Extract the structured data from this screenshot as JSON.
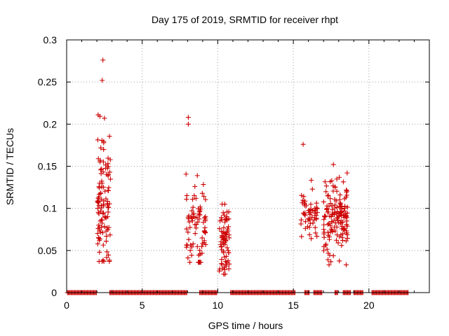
{
  "chart_data": {
    "type": "scatter",
    "title": "Day 175 of 2019, SRMTID for receiver rhpt",
    "xlabel": "GPS time / hours",
    "ylabel": "SRMTID / TECUs",
    "xlim": [
      0,
      24
    ],
    "ylim": [
      0,
      0.3
    ],
    "xticks": [
      0,
      5,
      10,
      15,
      20
    ],
    "yticks": [
      0,
      0.05,
      0.1,
      0.15,
      0.2,
      0.25,
      0.3
    ],
    "xtick_labels": [
      "0",
      "5",
      "10",
      "15",
      "20"
    ],
    "ytick_labels": [
      "0",
      "0.05",
      "0.1",
      "0.15",
      "0.2",
      "0.25",
      "0.3"
    ],
    "grid": true,
    "marker": "+",
    "color": "#cc0000",
    "clusters": [
      {
        "x_start": 2.0,
        "x_end": 2.9,
        "peak": 0.276,
        "min": 0.037,
        "mean": 0.11,
        "spread": 0.04,
        "count": 110
      },
      {
        "x_start": 7.9,
        "x_end": 9.2,
        "peak": 0.208,
        "min": 0.036,
        "mean": 0.08,
        "spread": 0.03,
        "count": 80
      },
      {
        "x_start": 10.1,
        "x_end": 10.8,
        "peak": 0.115,
        "min": 0.022,
        "mean": 0.06,
        "spread": 0.025,
        "count": 75
      },
      {
        "x_start": 15.5,
        "x_end": 16.6,
        "peak": 0.176,
        "min": 0.06,
        "mean": 0.095,
        "spread": 0.015,
        "count": 55
      },
      {
        "x_start": 17.0,
        "x_end": 18.6,
        "peak": 0.152,
        "min": 0.033,
        "mean": 0.09,
        "spread": 0.025,
        "count": 150
      }
    ],
    "zero_segments": [
      [
        0.05,
        2.0
      ],
      [
        2.85,
        7.95
      ],
      [
        8.8,
        10.0
      ],
      [
        10.85,
        15.15
      ],
      [
        15.75,
        16.1
      ],
      [
        16.35,
        16.9
      ],
      [
        17.75,
        17.95
      ],
      [
        18.3,
        18.8
      ],
      [
        19.0,
        19.6
      ],
      [
        20.2,
        22.6
      ]
    ],
    "notable_points": [
      {
        "x": 2.4,
        "y": 0.276
      },
      {
        "x": 2.35,
        "y": 0.252
      },
      {
        "x": 2.5,
        "y": 0.207
      },
      {
        "x": 8.05,
        "y": 0.208
      },
      {
        "x": 8.05,
        "y": 0.2
      },
      {
        "x": 15.65,
        "y": 0.176
      },
      {
        "x": 17.65,
        "y": 0.152
      }
    ]
  }
}
